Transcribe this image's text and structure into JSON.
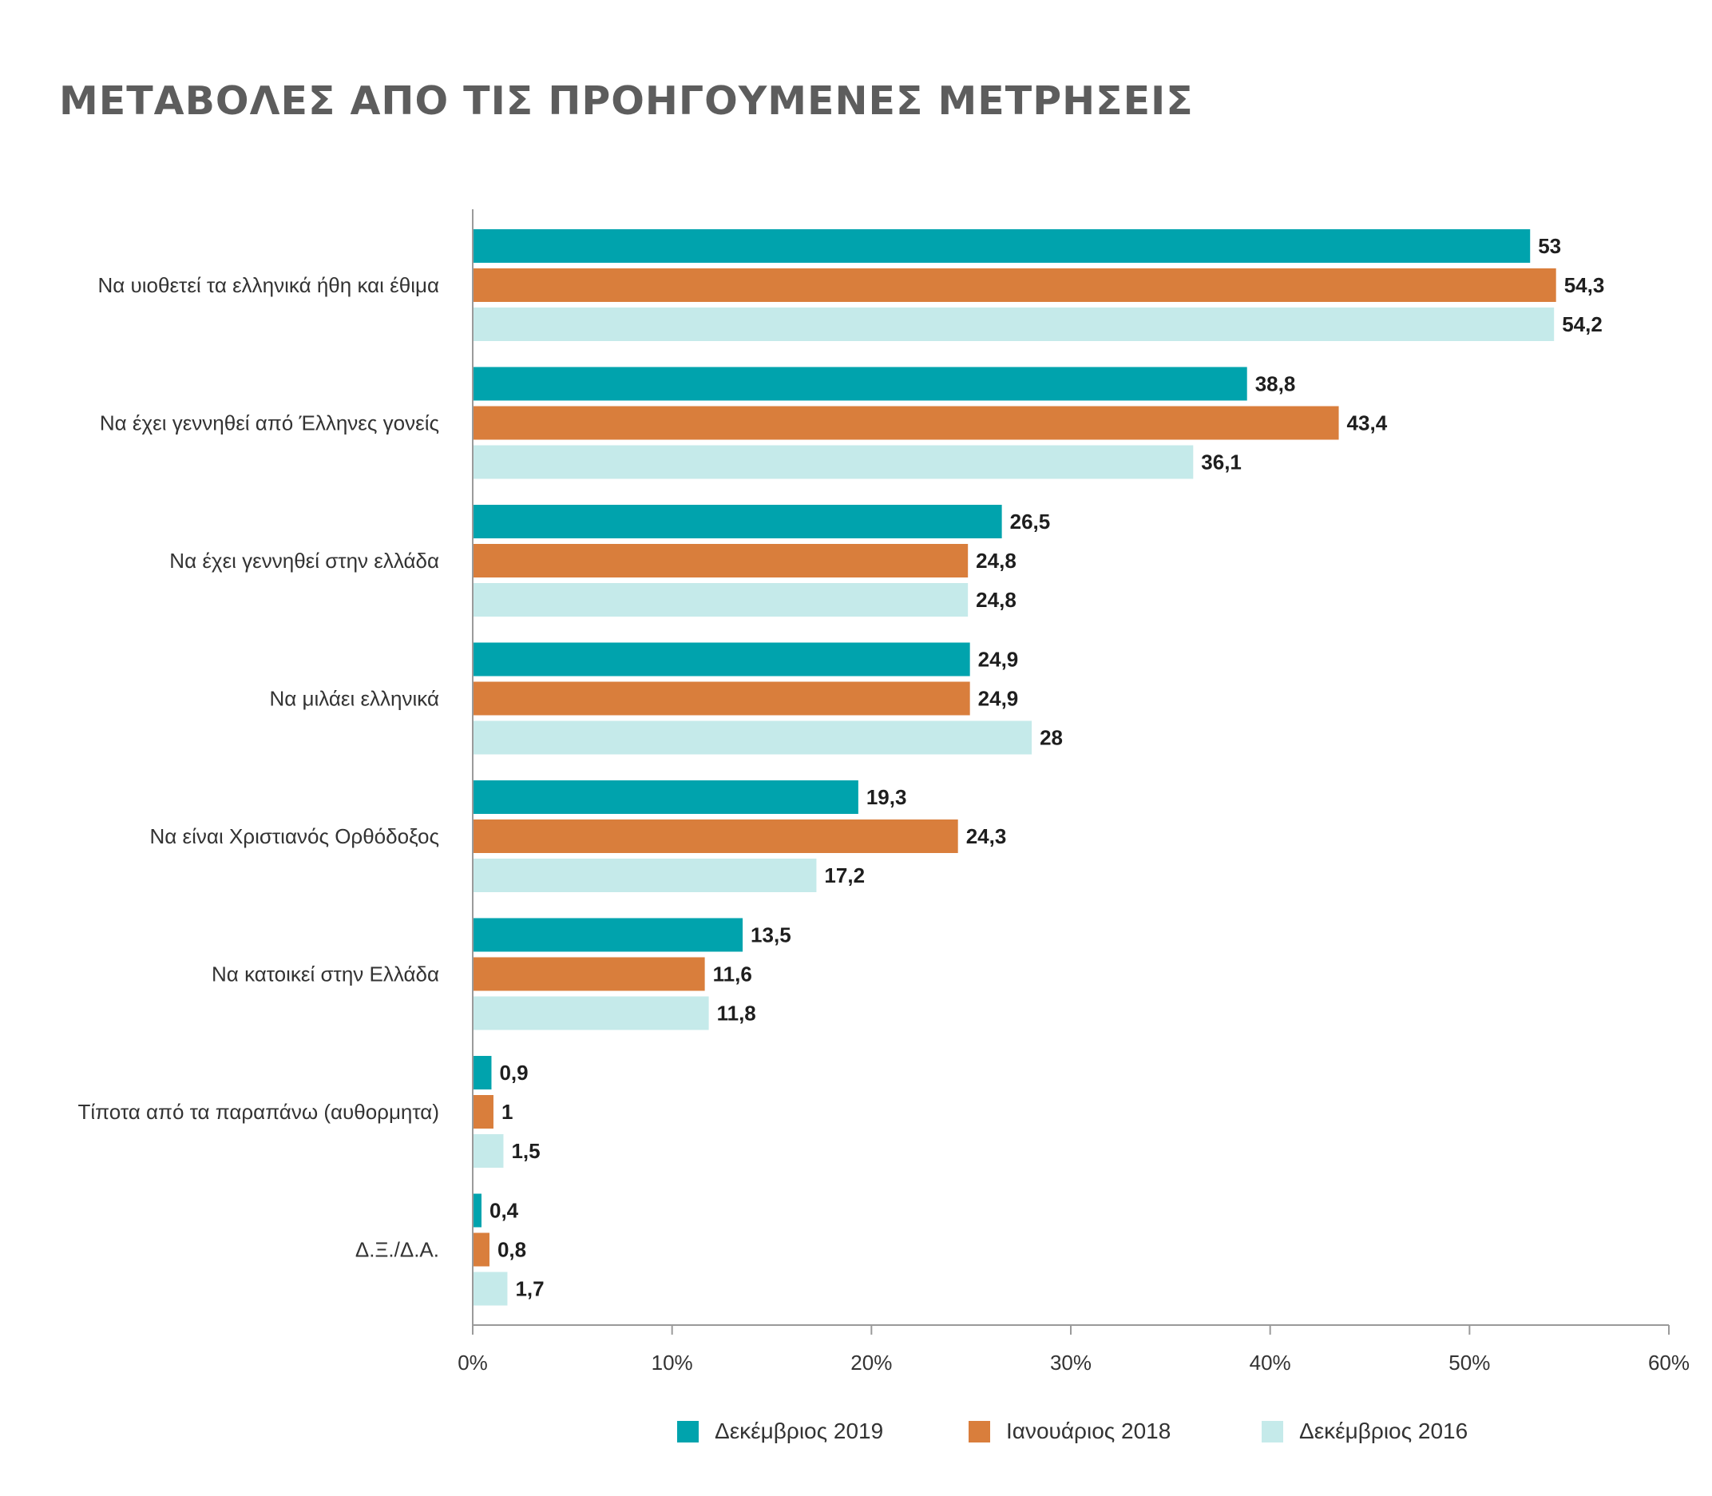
{
  "chart_data": {
    "type": "bar",
    "orientation": "horizontal",
    "title": "ΜΕΤΑΒΟΛΕΣ ΑΠΟ ΤΙΣ ΠΡΟΗΓΟΥΜΕΝΕΣ ΜΕΤΡΗΣΕΙΣ",
    "categories": [
      "Να υιοθετεί τα ελληνικά ήθη και έθιμα",
      "Να έχει γεννηθεί από Έλληνες γονείς",
      "Να έχει γεννηθεί στην ελλάδα",
      "Να μιλάει  ελληνικά",
      "Να είναι Χριστιανός Ορθόδοξος",
      "Να κατοικεί στην Ελλάδα",
      "Τίποτα από τα παραπάνω (αυθορμητα)",
      "Δ.Ξ./Δ.Α."
    ],
    "series": [
      {
        "name": "Δεκέμβριος 2019",
        "color": "#00a3ad",
        "values": [
          53,
          38.8,
          26.5,
          24.9,
          19.3,
          13.5,
          0.9,
          0.4
        ],
        "labels": [
          "53",
          "38,8",
          "26,5",
          "24,9",
          "19,3",
          "13,5",
          "0,9",
          "0,4"
        ]
      },
      {
        "name": "Ιανουάριος 2018",
        "color": "#d97e3c",
        "values": [
          54.3,
          43.4,
          24.8,
          24.9,
          24.3,
          11.6,
          1,
          0.8
        ],
        "labels": [
          "54,3",
          "43,4",
          "24,8",
          "24,9",
          "24,3",
          "11,6",
          "1",
          "0,8"
        ]
      },
      {
        "name": "Δεκέμβριος 2016",
        "color": "#c5eaea",
        "values": [
          54.2,
          36.1,
          24.8,
          28,
          17.2,
          11.8,
          1.5,
          1.7
        ],
        "labels": [
          "54,2",
          "36,1",
          "24,8",
          "28",
          "17,2",
          "11,8",
          "1,5",
          "1,7"
        ]
      }
    ],
    "xlim": [
      0,
      60
    ],
    "ticks": [
      0,
      10,
      20,
      30,
      40,
      50,
      60
    ],
    "tick_labels": [
      "0%",
      "10%",
      "20%",
      "30%",
      "40%",
      "50%",
      "60%"
    ],
    "grid": false,
    "legend_position": "bottom"
  }
}
